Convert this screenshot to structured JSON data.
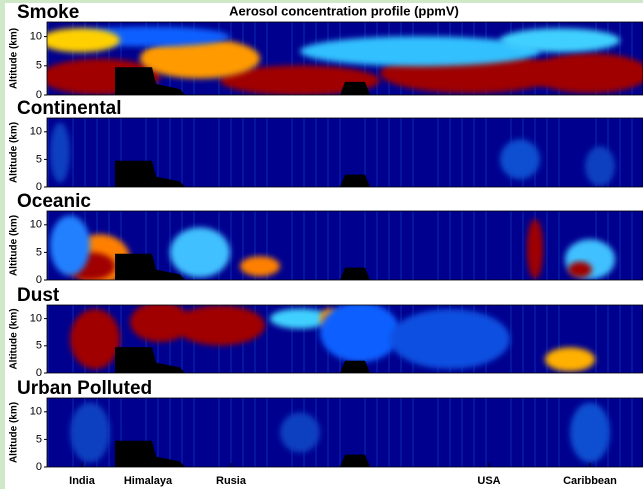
{
  "chart_data": [
    {
      "type": "heatmap",
      "label": "Smoke",
      "title": "Aerosol concentration profile (ppmV)",
      "ylabel": "Altitude (km)",
      "ylim": [
        0,
        12.5
      ],
      "yticks": [
        0,
        5,
        10
      ]
    },
    {
      "type": "heatmap",
      "label": "Continental",
      "ylabel": "Altitude (km)",
      "ylim": [
        0,
        12.5
      ],
      "yticks": [
        0,
        5,
        10
      ]
    },
    {
      "type": "heatmap",
      "label": "Oceanic",
      "ylabel": "Altitude (km)",
      "ylim": [
        0,
        12.5
      ],
      "yticks": [
        0,
        5,
        10
      ]
    },
    {
      "type": "heatmap",
      "label": "Dust",
      "ylabel": "Altitude (km)",
      "ylim": [
        0,
        12.5
      ],
      "yticks": [
        0,
        5,
        10
      ]
    },
    {
      "type": "heatmap",
      "label": "Urban Polluted",
      "ylabel": "Altitude (km)",
      "ylim": [
        0,
        12.5
      ],
      "yticks": [
        0,
        5,
        10
      ],
      "categories": [
        "India",
        "Himalaya",
        "Rusia",
        "USA",
        "Caribbean"
      ]
    }
  ]
}
